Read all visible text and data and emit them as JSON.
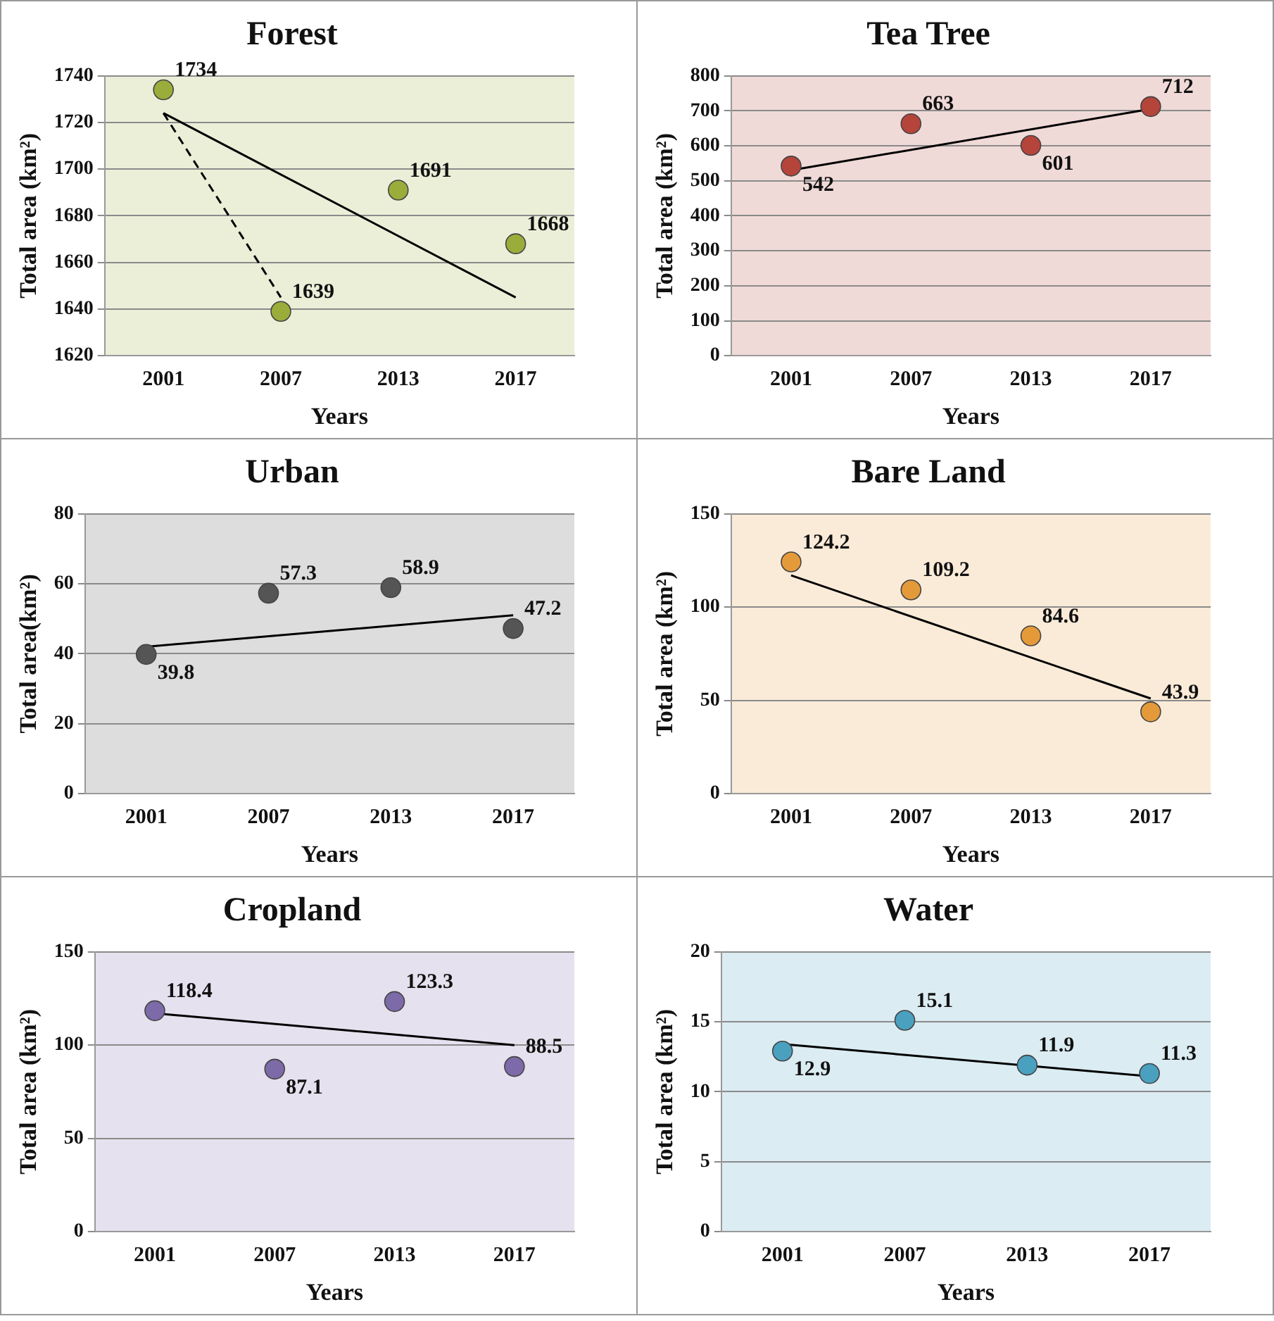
{
  "chart_data": [
    {
      "type": "scatter",
      "title": "Forest",
      "xlabel": "Years",
      "ylabel": "Total area (km²)",
      "categories": [
        "2001",
        "2007",
        "2013",
        "2017"
      ],
      "ylim": [
        1620,
        1740
      ],
      "yticks": [
        1620,
        1640,
        1660,
        1680,
        1700,
        1720,
        1740
      ],
      "grid": "y",
      "marker": "circle",
      "series": [
        {
          "color": "#9aad3a",
          "values": [
            1734,
            1639,
            1691,
            1668
          ],
          "value_labels": [
            "1734",
            "1639",
            "1691",
            "1668"
          ]
        },
        {
          "type": "line",
          "color": "#000000",
          "values": [
            1724,
            null,
            null,
            1645
          ],
          "marker": "none",
          "line_style": "solid"
        },
        {
          "type": "line",
          "color": "#000000",
          "values": [
            1724,
            1645,
            null,
            null
          ],
          "marker": "none",
          "line_style": "dashed"
        }
      ]
    },
    {
      "type": "scatter",
      "title": "Tea Tree",
      "xlabel": "Years",
      "ylabel": "Total area (km²)",
      "categories": [
        "2001",
        "2007",
        "2013",
        "2017"
      ],
      "ylim": [
        0,
        800
      ],
      "yticks": [
        0,
        100,
        200,
        300,
        400,
        500,
        600,
        700,
        800
      ],
      "grid": "y",
      "marker": "circle",
      "series": [
        {
          "color": "#b5443a",
          "values": [
            542,
            663,
            601,
            712
          ],
          "value_labels": [
            "542",
            "663",
            "601",
            "712"
          ]
        },
        {
          "type": "line",
          "color": "#000000",
          "values": [
            530,
            null,
            null,
            705
          ],
          "marker": "none",
          "line_style": "solid"
        }
      ]
    },
    {
      "type": "scatter",
      "title": "Urban",
      "xlabel": "Years",
      "ylabel": "Total area(km²)",
      "categories": [
        "2001",
        "2007",
        "2013",
        "2017"
      ],
      "ylim": [
        0,
        80
      ],
      "yticks": [
        0,
        20,
        40,
        60,
        80
      ],
      "grid": "y",
      "marker": "circle",
      "series": [
        {
          "color": "#555555",
          "values": [
            39.8,
            57.3,
            58.9,
            47.2
          ],
          "value_labels": [
            "39.8",
            "57.3",
            "58.9",
            "47.2"
          ]
        },
        {
          "type": "line",
          "color": "#000000",
          "values": [
            42,
            null,
            null,
            51
          ],
          "marker": "none",
          "line_style": "solid"
        }
      ]
    },
    {
      "type": "scatter",
      "title": "Bare Land",
      "xlabel": "Years",
      "ylabel": "Total area (km²)",
      "categories": [
        "2001",
        "2007",
        "2013",
        "2017"
      ],
      "ylim": [
        0,
        150
      ],
      "yticks": [
        0,
        50,
        100,
        150
      ],
      "grid": "y",
      "marker": "circle",
      "series": [
        {
          "color": "#e59a3a",
          "values": [
            124.2,
            109.2,
            84.6,
            43.9
          ],
          "value_labels": [
            "124.2",
            "109.2",
            "84.6",
            "43.9"
          ]
        },
        {
          "type": "line",
          "color": "#000000",
          "values": [
            117,
            null,
            null,
            51
          ],
          "marker": "none",
          "line_style": "solid"
        }
      ]
    },
    {
      "type": "scatter",
      "title": "Cropland",
      "xlabel": "Years",
      "ylabel": "Total area (km²)",
      "categories": [
        "2001",
        "2007",
        "2013",
        "2017"
      ],
      "ylim": [
        0,
        150
      ],
      "yticks": [
        0,
        50,
        100,
        150
      ],
      "grid": "y",
      "marker": "circle",
      "series": [
        {
          "color": "#7d6aa8",
          "values": [
            118.4,
            87.1,
            123.3,
            88.5
          ],
          "value_labels": [
            "118.4",
            "87.1",
            "123.3",
            "88.5"
          ]
        },
        {
          "type": "line",
          "color": "#000000",
          "values": [
            117,
            null,
            null,
            100
          ],
          "marker": "none",
          "line_style": "solid"
        }
      ]
    },
    {
      "type": "scatter",
      "title": "Water",
      "xlabel": "Years",
      "ylabel": "Total area (km²)",
      "categories": [
        "2001",
        "2007",
        "2013",
        "2017"
      ],
      "ylim": [
        0,
        20
      ],
      "yticks": [
        0,
        5,
        10,
        15,
        20
      ],
      "grid": "y",
      "marker": "circle",
      "series": [
        {
          "color": "#4aa0bf",
          "values": [
            12.9,
            15.1,
            11.9,
            11.3
          ],
          "value_labels": [
            "12.9",
            "15.1",
            "11.9",
            "11.3"
          ]
        },
        {
          "type": "line",
          "color": "#000000",
          "values": [
            13.4,
            null,
            null,
            11.1
          ],
          "marker": "none",
          "line_style": "solid"
        }
      ]
    }
  ]
}
